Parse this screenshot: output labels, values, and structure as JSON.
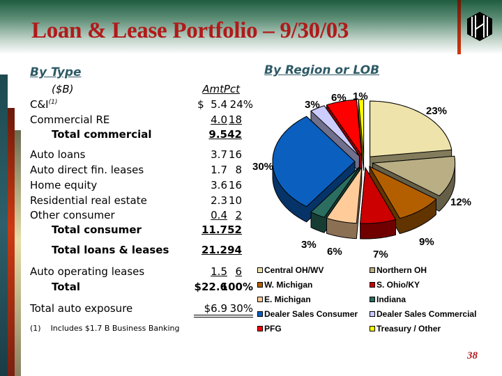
{
  "title": "Loan & Lease Portfolio – 9/30/03",
  "page_number": "38",
  "by_type": {
    "heading": "By Type",
    "units": "($B)",
    "amt_header": "Amt",
    "pct_header": "Pct",
    "rows": [
      {
        "label": "C&I",
        "sup": "(1)",
        "amt": "$  5.4",
        "pct": "24%"
      },
      {
        "label": "Commercial RE",
        "amt": "4.0",
        "pct": "18"
      },
      {
        "label": "Total commercial",
        "amt": "9.5",
        "pct": "42"
      },
      {
        "label": "Auto loans",
        "amt": "3.7",
        "pct": "16"
      },
      {
        "label": "Auto direct fin. leases",
        "amt": "1.7",
        "pct": "8"
      },
      {
        "label": "Home equity",
        "amt": "3.6",
        "pct": "16"
      },
      {
        "label": "Residential real estate",
        "amt": "2.3",
        "pct": "10"
      },
      {
        "label": "Other consumer",
        "amt": "0.4",
        "pct": "2"
      },
      {
        "label": "Total consumer",
        "amt": "11.7",
        "pct": "52"
      },
      {
        "label": "Total loans & leases",
        "amt": "21.2",
        "pct": "94"
      },
      {
        "label": "Auto operating leases",
        "amt": "1.5",
        "pct": "6"
      },
      {
        "label": "Total",
        "amt": "$22.6",
        "pct": "100%"
      },
      {
        "label": "Total auto exposure",
        "amt": "$6.9",
        "pct": "30%"
      }
    ],
    "footnote": "(1)    Includes $1.7 B Business Banking"
  },
  "by_region": {
    "heading": "By Region or LOB",
    "chart_data": {
      "type": "pie",
      "title": "By Region or LOB",
      "legend_position": "bottom",
      "slices": [
        {
          "name": "Central OH/WV",
          "value": 23,
          "label": "23%",
          "color": "#EEE3AA"
        },
        {
          "name": "Northern OH",
          "value": 12,
          "label": "12%",
          "color": "#B9AE84"
        },
        {
          "name": "W. Michigan",
          "value": 9,
          "label": "9%",
          "color": "#B35F00"
        },
        {
          "name": "S. Ohio/KY",
          "value": 7,
          "label": "7%",
          "color": "#CC0000"
        },
        {
          "name": "E. Michigan",
          "value": 6,
          "label": "6%",
          "color": "#FFCC99"
        },
        {
          "name": "Indiana",
          "value": 3,
          "label": "3%",
          "color": "#2B6E60"
        },
        {
          "name": "Dealer Sales Consumer",
          "value": 30,
          "label": "30%",
          "color": "#0B5FBF"
        },
        {
          "name": "Dealer Sales Commercial",
          "value": 3,
          "label": "3%",
          "color": "#CCCCFF"
        },
        {
          "name": "PFG",
          "value": 6,
          "label": "6%",
          "color": "#FF0000"
        },
        {
          "name": "Treasury / Other",
          "value": 1,
          "label": "1%",
          "color": "#FFFF00"
        }
      ]
    }
  }
}
